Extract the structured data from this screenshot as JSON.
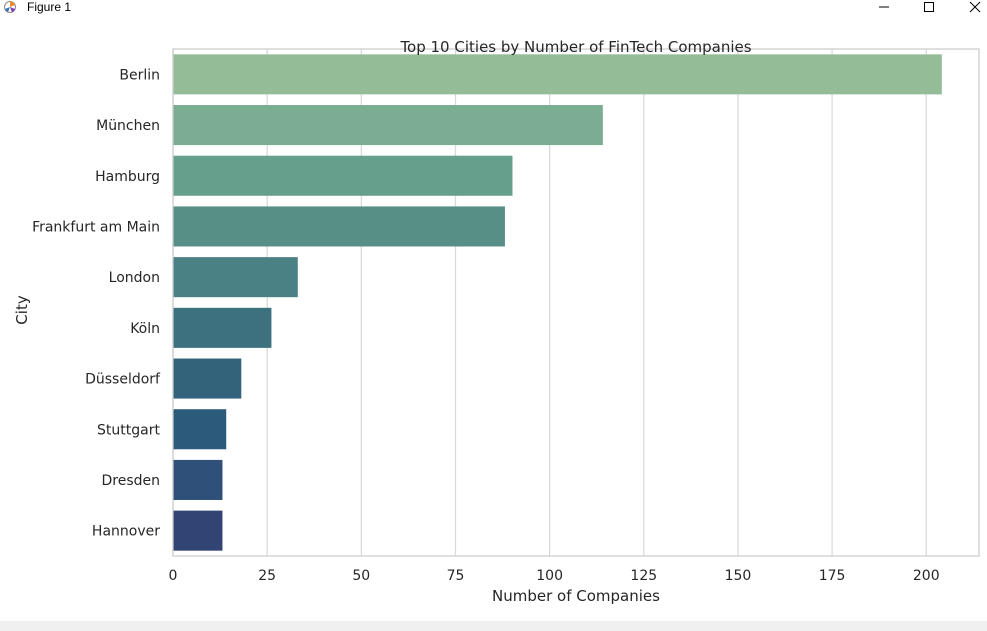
{
  "window": {
    "title": "Figure 1",
    "icons": {
      "app": "matplotlib-icon",
      "minimize": "minimize-icon",
      "maximize": "maximize-icon",
      "close": "close-icon"
    }
  },
  "chart_data": {
    "type": "bar",
    "orientation": "horizontal",
    "title": "Top 10 Cities by Number of FinTech Companies",
    "xlabel": "Number of Companies",
    "ylabel": "City",
    "categories": [
      "Berlin",
      "München",
      "Hamburg",
      "Frankfurt am Main",
      "London",
      "Köln",
      "Düsseldorf",
      "Stuttgart",
      "Dresden",
      "Hannover"
    ],
    "values": [
      204,
      114,
      90,
      88,
      33,
      26,
      18,
      14,
      13,
      13
    ],
    "xlim": [
      0,
      214
    ],
    "xticks": [
      0,
      25,
      50,
      75,
      100,
      125,
      150,
      175,
      200
    ],
    "grid": "vertical",
    "colors": [
      "#94bd97",
      "#7aad91",
      "#669f8c",
      "#578f87",
      "#4a8184",
      "#3d717f",
      "#32637b",
      "#2b5a7a",
      "#2e5079",
      "#324474"
    ]
  }
}
